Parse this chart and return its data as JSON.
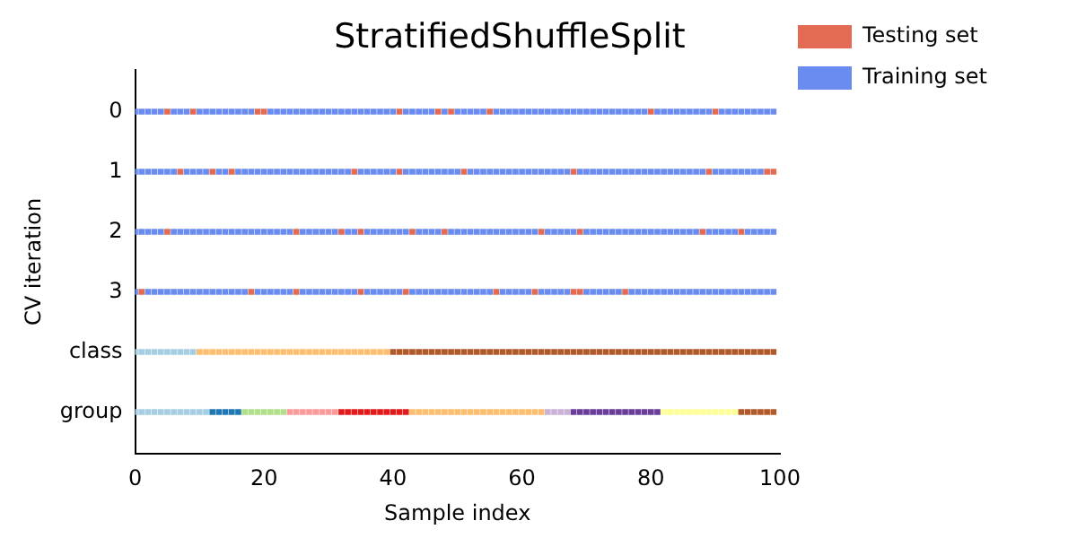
{
  "chart_data": {
    "type": "scatter",
    "title": "StratifiedShuffleSplit",
    "xlabel": "Sample index",
    "ylabel": "CV iteration",
    "xlim": [
      0,
      100
    ],
    "xticks": [
      0,
      20,
      40,
      60,
      80,
      100
    ],
    "ylim": [
      6.2,
      -0.2
    ],
    "yticks": [
      {
        "value": 0.5,
        "label": "0"
      },
      {
        "value": 1.5,
        "label": "1"
      },
      {
        "value": 2.5,
        "label": "2"
      },
      {
        "value": 3.5,
        "label": "3"
      },
      {
        "value": 4.5,
        "label": "class"
      },
      {
        "value": 5.5,
        "label": "group"
      }
    ],
    "grid": false,
    "legend": "right",
    "series": [
      {
        "name": "Testing set",
        "color": "#e36a53",
        "x": [
          5,
          9,
          19,
          20,
          41,
          47,
          49,
          55,
          80,
          90,
          7,
          12,
          15,
          34,
          41,
          51,
          68,
          89,
          98,
          99,
          5,
          25,
          32,
          35,
          43,
          48,
          63,
          69,
          88,
          94,
          1,
          18,
          25,
          35,
          42,
          56,
          62,
          68,
          69,
          76
        ],
        "values": [
          0.5,
          0.5,
          0.5,
          0.5,
          0.5,
          0.5,
          0.5,
          0.5,
          0.5,
          0.5,
          1.5,
          1.5,
          1.5,
          1.5,
          1.5,
          1.5,
          1.5,
          1.5,
          1.5,
          1.5,
          2.5,
          2.5,
          2.5,
          2.5,
          2.5,
          2.5,
          2.5,
          2.5,
          2.5,
          2.5,
          3.5,
          3.5,
          3.5,
          3.5,
          3.5,
          3.5,
          3.5,
          3.5,
          3.5,
          3.5
        ]
      },
      {
        "name": "Training set",
        "color": "#6a8bef",
        "x": [
          0,
          1,
          2,
          3,
          4,
          6,
          7,
          8,
          10,
          11,
          12,
          13,
          14,
          15,
          16,
          17,
          18,
          21,
          22,
          23,
          24,
          25,
          26,
          27,
          28,
          29,
          30,
          31,
          32,
          33,
          34,
          35,
          36,
          37,
          38,
          39,
          40,
          42,
          43,
          44,
          45,
          46,
          48,
          50,
          51,
          52,
          53,
          54,
          56,
          57,
          58,
          59,
          60,
          61,
          62,
          63,
          64,
          65,
          66,
          67,
          68,
          69,
          70,
          71,
          72,
          73,
          74,
          75,
          76,
          77,
          78,
          79,
          81,
          82,
          83,
          84,
          85,
          86,
          87,
          88,
          89,
          91,
          92,
          93,
          94,
          95,
          96,
          97,
          98,
          99
        ],
        "values": [
          0.5,
          0.5,
          0.5,
          0.5,
          0.5,
          0.5,
          0.5,
          0.5,
          0.5,
          0.5,
          0.5,
          0.5,
          0.5,
          0.5,
          0.5,
          0.5,
          0.5,
          0.5,
          0.5,
          0.5,
          0.5,
          0.5,
          0.5,
          0.5,
          0.5,
          0.5,
          0.5,
          0.5,
          0.5,
          0.5,
          0.5,
          0.5,
          0.5,
          0.5,
          0.5,
          0.5,
          0.5,
          0.5,
          0.5,
          0.5,
          0.5,
          0.5,
          0.5,
          0.5,
          0.5,
          0.5,
          0.5,
          0.5,
          0.5,
          0.5,
          0.5,
          0.5,
          0.5,
          0.5,
          0.5,
          0.5,
          0.5,
          0.5,
          0.5,
          0.5,
          0.5,
          0.5,
          0.5,
          0.5,
          0.5,
          0.5,
          0.5,
          0.5,
          0.5,
          0.5,
          0.5,
          0.5,
          0.5,
          0.5,
          0.5,
          0.5,
          0.5,
          0.5,
          0.5,
          0.5,
          0.5,
          0.5,
          0.5,
          0.5,
          0.5,
          0.5,
          0.5,
          0.5,
          0.5,
          0.5
        ]
      },
      {
        "color": "#6a8bef",
        "x": [
          0,
          1,
          2,
          3,
          4,
          5,
          6,
          8,
          9,
          10,
          11,
          13,
          14,
          16,
          17,
          18,
          19,
          20,
          21,
          22,
          23,
          24,
          25,
          26,
          27,
          28,
          29,
          30,
          31,
          32,
          33,
          35,
          36,
          37,
          38,
          39,
          40,
          42,
          43,
          44,
          45,
          46,
          47,
          48,
          49,
          50,
          52,
          53,
          54,
          55,
          56,
          57,
          58,
          59,
          60,
          61,
          62,
          63,
          64,
          65,
          66,
          67,
          69,
          70,
          71,
          72,
          73,
          74,
          75,
          76,
          77,
          78,
          79,
          80,
          81,
          82,
          83,
          84,
          85,
          86,
          87,
          88,
          90,
          91,
          92,
          93,
          94,
          95,
          96,
          97
        ],
        "values": [
          1.5,
          1.5,
          1.5,
          1.5,
          1.5,
          1.5,
          1.5,
          1.5,
          1.5,
          1.5,
          1.5,
          1.5,
          1.5,
          1.5,
          1.5,
          1.5,
          1.5,
          1.5,
          1.5,
          1.5,
          1.5,
          1.5,
          1.5,
          1.5,
          1.5,
          1.5,
          1.5,
          1.5,
          1.5,
          1.5,
          1.5,
          1.5,
          1.5,
          1.5,
          1.5,
          1.5,
          1.5,
          1.5,
          1.5,
          1.5,
          1.5,
          1.5,
          1.5,
          1.5,
          1.5,
          1.5,
          1.5,
          1.5,
          1.5,
          1.5,
          1.5,
          1.5,
          1.5,
          1.5,
          1.5,
          1.5,
          1.5,
          1.5,
          1.5,
          1.5,
          1.5,
          1.5,
          1.5,
          1.5,
          1.5,
          1.5,
          1.5,
          1.5,
          1.5,
          1.5,
          1.5,
          1.5,
          1.5,
          1.5,
          1.5,
          1.5,
          1.5,
          1.5,
          1.5,
          1.5,
          1.5,
          1.5,
          1.5,
          1.5,
          1.5,
          1.5,
          1.5,
          1.5,
          1.5,
          1.5
        ]
      },
      {
        "color": "#6a8bef",
        "x": [
          0,
          1,
          2,
          3,
          4,
          6,
          7,
          8,
          9,
          10,
          11,
          12,
          13,
          14,
          15,
          16,
          17,
          18,
          19,
          20,
          21,
          22,
          23,
          24,
          26,
          27,
          28,
          29,
          30,
          31,
          33,
          34,
          36,
          37,
          38,
          39,
          40,
          41,
          42,
          44,
          45,
          46,
          47,
          49,
          50,
          51,
          52,
          53,
          54,
          55,
          56,
          57,
          58,
          59,
          60,
          61,
          62,
          64,
          65,
          66,
          67,
          68,
          70,
          71,
          72,
          73,
          74,
          75,
          76,
          77,
          78,
          79,
          80,
          81,
          82,
          83,
          84,
          85,
          86,
          87,
          89,
          90,
          91,
          92,
          93,
          95,
          96,
          97,
          98,
          99
        ],
        "values": [
          2.5,
          2.5,
          2.5,
          2.5,
          2.5,
          2.5,
          2.5,
          2.5,
          2.5,
          2.5,
          2.5,
          2.5,
          2.5,
          2.5,
          2.5,
          2.5,
          2.5,
          2.5,
          2.5,
          2.5,
          2.5,
          2.5,
          2.5,
          2.5,
          2.5,
          2.5,
          2.5,
          2.5,
          2.5,
          2.5,
          2.5,
          2.5,
          2.5,
          2.5,
          2.5,
          2.5,
          2.5,
          2.5,
          2.5,
          2.5,
          2.5,
          2.5,
          2.5,
          2.5,
          2.5,
          2.5,
          2.5,
          2.5,
          2.5,
          2.5,
          2.5,
          2.5,
          2.5,
          2.5,
          2.5,
          2.5,
          2.5,
          2.5,
          2.5,
          2.5,
          2.5,
          2.5,
          2.5,
          2.5,
          2.5,
          2.5,
          2.5,
          2.5,
          2.5,
          2.5,
          2.5,
          2.5,
          2.5,
          2.5,
          2.5,
          2.5,
          2.5,
          2.5,
          2.5,
          2.5,
          2.5,
          2.5,
          2.5,
          2.5,
          2.5,
          2.5,
          2.5,
          2.5,
          2.5,
          2.5
        ]
      },
      {
        "color": "#6a8bef",
        "x": [
          0,
          2,
          3,
          4,
          5,
          6,
          7,
          8,
          9,
          10,
          11,
          12,
          13,
          14,
          15,
          16,
          17,
          19,
          20,
          21,
          22,
          23,
          24,
          26,
          27,
          28,
          29,
          30,
          31,
          32,
          33,
          34,
          36,
          37,
          38,
          39,
          40,
          41,
          43,
          44,
          45,
          46,
          47,
          48,
          49,
          50,
          51,
          52,
          53,
          54,
          55,
          57,
          58,
          59,
          60,
          61,
          63,
          64,
          65,
          66,
          67,
          70,
          71,
          72,
          73,
          74,
          75,
          77,
          78,
          79,
          80,
          81,
          82,
          83,
          84,
          85,
          86,
          87,
          88,
          89,
          90,
          91,
          92,
          93,
          94,
          95,
          96,
          97,
          98,
          99
        ],
        "values": [
          3.5,
          3.5,
          3.5,
          3.5,
          3.5,
          3.5,
          3.5,
          3.5,
          3.5,
          3.5,
          3.5,
          3.5,
          3.5,
          3.5,
          3.5,
          3.5,
          3.5,
          3.5,
          3.5,
          3.5,
          3.5,
          3.5,
          3.5,
          3.5,
          3.5,
          3.5,
          3.5,
          3.5,
          3.5,
          3.5,
          3.5,
          3.5,
          3.5,
          3.5,
          3.5,
          3.5,
          3.5,
          3.5,
          3.5,
          3.5,
          3.5,
          3.5,
          3.5,
          3.5,
          3.5,
          3.5,
          3.5,
          3.5,
          3.5,
          3.5,
          3.5,
          3.5,
          3.5,
          3.5,
          3.5,
          3.5,
          3.5,
          3.5,
          3.5,
          3.5,
          3.5,
          3.5,
          3.5,
          3.5,
          3.5,
          3.5,
          3.5,
          3.5,
          3.5,
          3.5,
          3.5,
          3.5,
          3.5,
          3.5,
          3.5,
          3.5,
          3.5,
          3.5,
          3.5,
          3.5,
          3.5,
          3.5,
          3.5,
          3.5,
          3.5,
          3.5,
          3.5,
          3.5,
          3.5,
          3.5
        ]
      },
      {
        "color": "#a6cee3",
        "x": [
          0,
          1,
          2,
          3,
          4,
          5,
          6,
          7,
          8,
          9
        ],
        "values": [
          4.5,
          4.5,
          4.5,
          4.5,
          4.5,
          4.5,
          4.5,
          4.5,
          4.5,
          4.5
        ]
      },
      {
        "color": "#fdbf6f",
        "x": [
          10,
          11,
          12,
          13,
          14,
          15,
          16,
          17,
          18,
          19,
          20,
          21,
          22,
          23,
          24,
          25,
          26,
          27,
          28,
          29,
          30,
          31,
          32,
          33,
          34,
          35,
          36,
          37,
          38,
          39
        ],
        "values": [
          4.5,
          4.5,
          4.5,
          4.5,
          4.5,
          4.5,
          4.5,
          4.5,
          4.5,
          4.5,
          4.5,
          4.5,
          4.5,
          4.5,
          4.5,
          4.5,
          4.5,
          4.5,
          4.5,
          4.5,
          4.5,
          4.5,
          4.5,
          4.5,
          4.5,
          4.5,
          4.5,
          4.5,
          4.5,
          4.5
        ]
      },
      {
        "color": "#b15928",
        "x": [
          40,
          41,
          42,
          43,
          44,
          45,
          46,
          47,
          48,
          49,
          50,
          51,
          52,
          53,
          54,
          55,
          56,
          57,
          58,
          59,
          60,
          61,
          62,
          63,
          64,
          65,
          66,
          67,
          68,
          69,
          70,
          71,
          72,
          73,
          74,
          75,
          76,
          77,
          78,
          79,
          80,
          81,
          82,
          83,
          84,
          85,
          86,
          87,
          88,
          89,
          90,
          91,
          92,
          93,
          94,
          95,
          96,
          97,
          98,
          99
        ],
        "values": [
          4.5,
          4.5,
          4.5,
          4.5,
          4.5,
          4.5,
          4.5,
          4.5,
          4.5,
          4.5,
          4.5,
          4.5,
          4.5,
          4.5,
          4.5,
          4.5,
          4.5,
          4.5,
          4.5,
          4.5,
          4.5,
          4.5,
          4.5,
          4.5,
          4.5,
          4.5,
          4.5,
          4.5,
          4.5,
          4.5,
          4.5,
          4.5,
          4.5,
          4.5,
          4.5,
          4.5,
          4.5,
          4.5,
          4.5,
          4.5,
          4.5,
          4.5,
          4.5,
          4.5,
          4.5,
          4.5,
          4.5,
          4.5,
          4.5,
          4.5,
          4.5,
          4.5,
          4.5,
          4.5,
          4.5,
          4.5,
          4.5,
          4.5,
          4.5,
          4.5
        ]
      },
      {
        "color": "#a6cee3",
        "x": [
          0,
          1,
          2,
          3,
          4,
          5,
          6,
          7,
          8,
          9,
          10,
          11
        ],
        "values": [
          5.5,
          5.5,
          5.5,
          5.5,
          5.5,
          5.5,
          5.5,
          5.5,
          5.5,
          5.5,
          5.5,
          5.5
        ]
      },
      {
        "color": "#1f78b4",
        "x": [
          12,
          13,
          14,
          15,
          16
        ],
        "values": [
          5.5,
          5.5,
          5.5,
          5.5,
          5.5
        ]
      },
      {
        "color": "#b2df8a",
        "x": [
          17,
          18,
          19,
          20,
          21,
          22,
          23
        ],
        "values": [
          5.5,
          5.5,
          5.5,
          5.5,
          5.5,
          5.5,
          5.5
        ]
      },
      {
        "color": "#fb9a99",
        "x": [
          24,
          25,
          26,
          27,
          28,
          29,
          30,
          31
        ],
        "values": [
          5.5,
          5.5,
          5.5,
          5.5,
          5.5,
          5.5,
          5.5,
          5.5
        ]
      },
      {
        "color": "#e31a1c",
        "x": [
          32,
          33,
          34,
          35,
          36,
          37,
          38,
          39,
          40,
          41,
          42
        ],
        "values": [
          5.5,
          5.5,
          5.5,
          5.5,
          5.5,
          5.5,
          5.5,
          5.5,
          5.5,
          5.5,
          5.5
        ]
      },
      {
        "color": "#fdbf6f",
        "x": [
          43,
          44,
          45,
          46,
          47,
          48,
          49,
          50,
          51,
          52,
          53,
          54,
          55,
          56,
          57,
          58,
          59,
          60,
          61,
          62,
          63
        ],
        "values": [
          5.5,
          5.5,
          5.5,
          5.5,
          5.5,
          5.5,
          5.5,
          5.5,
          5.5,
          5.5,
          5.5,
          5.5,
          5.5,
          5.5,
          5.5,
          5.5,
          5.5,
          5.5,
          5.5,
          5.5,
          5.5
        ]
      },
      {
        "color": "#cab2d6",
        "x": [
          64,
          65,
          66,
          67
        ],
        "values": [
          5.5,
          5.5,
          5.5,
          5.5
        ]
      },
      {
        "color": "#6a3d9a",
        "x": [
          68,
          69,
          70,
          71,
          72,
          73,
          74,
          75,
          76,
          77,
          78,
          79,
          80,
          81
        ],
        "values": [
          5.5,
          5.5,
          5.5,
          5.5,
          5.5,
          5.5,
          5.5,
          5.5,
          5.5,
          5.5,
          5.5,
          5.5,
          5.5,
          5.5
        ]
      },
      {
        "color": "#ffff99",
        "x": [
          82,
          83,
          84,
          85,
          86,
          87,
          88,
          89,
          90,
          91,
          92,
          93
        ],
        "values": [
          5.5,
          5.5,
          5.5,
          5.5,
          5.5,
          5.5,
          5.5,
          5.5,
          5.5,
          5.5,
          5.5,
          5.5
        ]
      },
      {
        "color": "#b15928",
        "x": [
          94,
          95,
          96,
          97,
          98,
          99
        ],
        "values": [
          5.5,
          5.5,
          5.5,
          5.5,
          5.5,
          5.5
        ]
      }
    ]
  }
}
